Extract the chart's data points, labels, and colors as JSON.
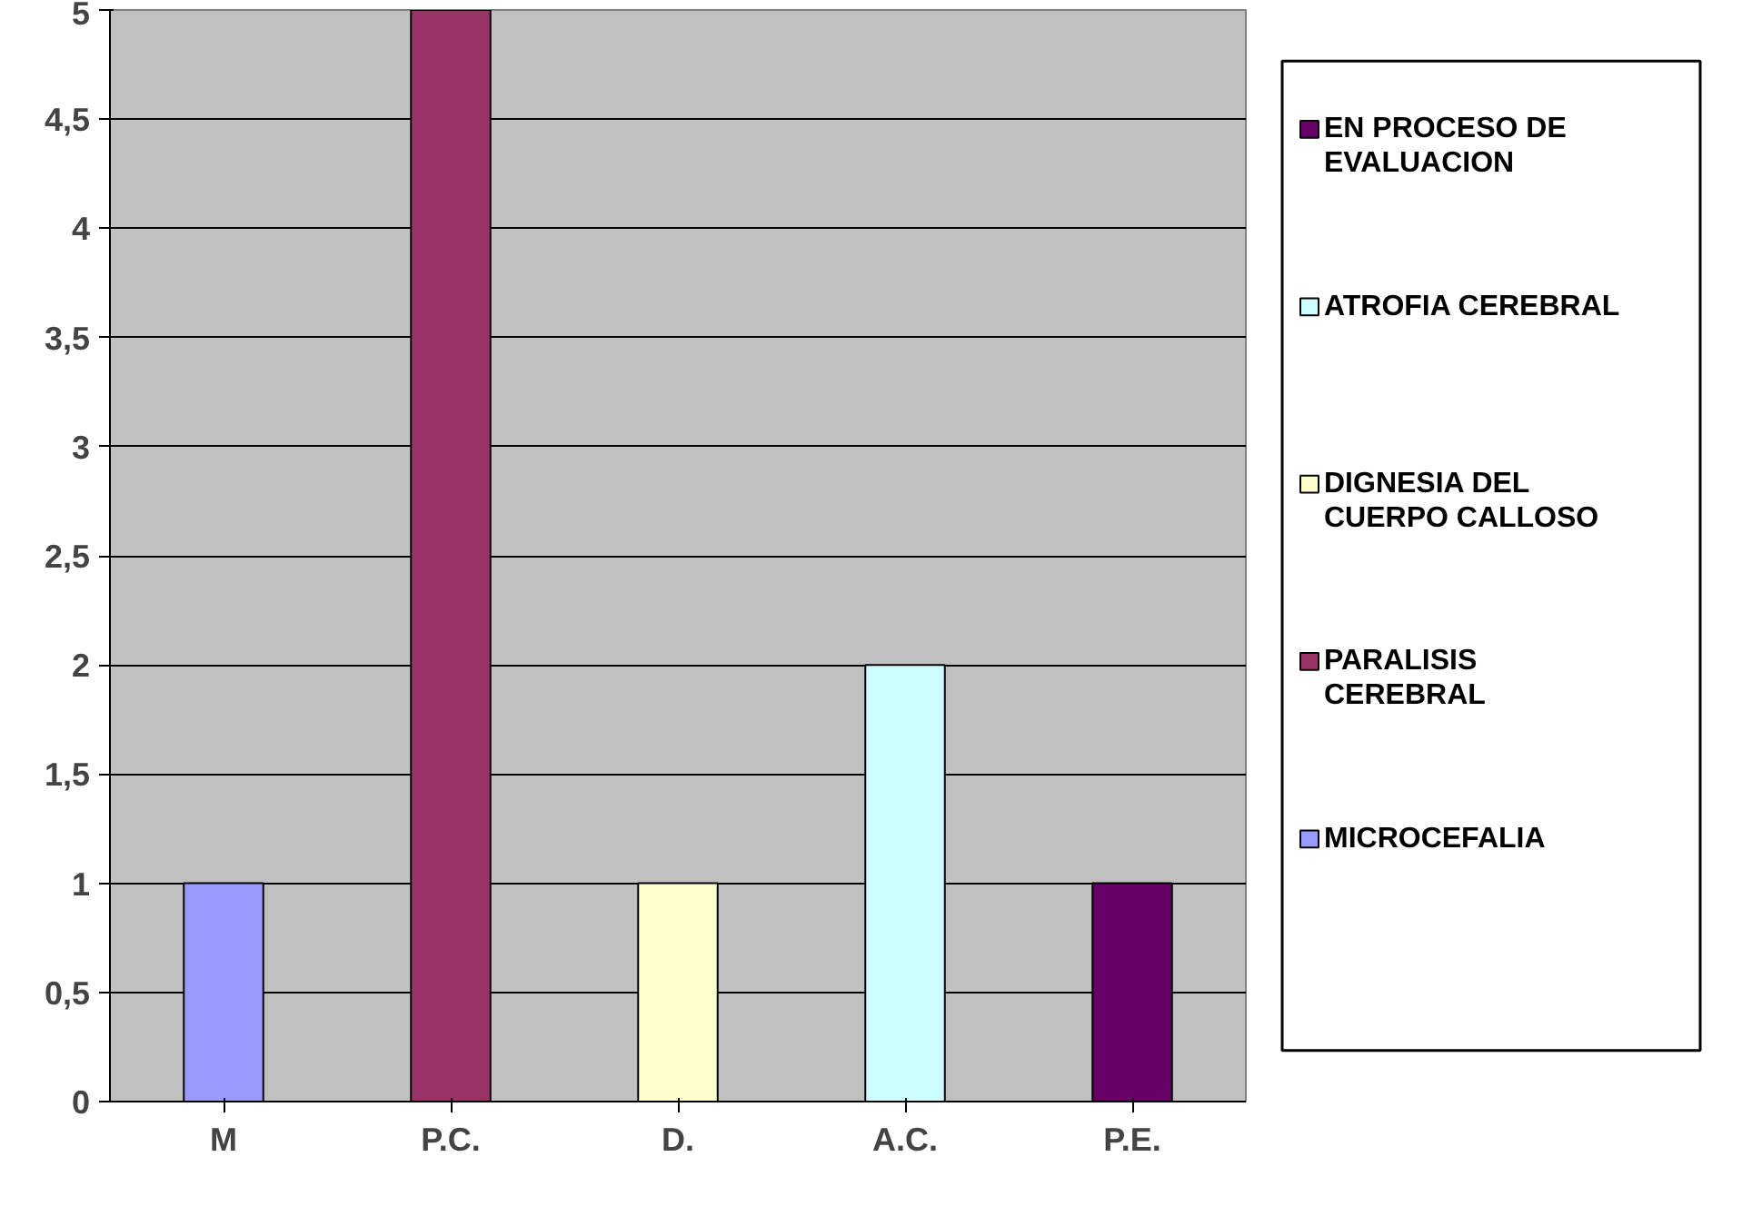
{
  "chart_data": {
    "type": "bar",
    "categories": [
      "M",
      "P.C.",
      "D.",
      "A.C.",
      "P.E."
    ],
    "series": [
      {
        "name": "MICROCEFALIA",
        "color": "#9999ff",
        "values": [
          1,
          null,
          null,
          null,
          null
        ]
      },
      {
        "name": "PARALISIS CEREBRAL",
        "color": "#993366",
        "values": [
          null,
          5,
          null,
          null,
          null
        ]
      },
      {
        "name": "DIGNESIA DEL CUERPO CALLOSO",
        "color": "#ffffcc",
        "values": [
          null,
          null,
          1,
          null,
          null
        ]
      },
      {
        "name": "ATROFIA CEREBRAL",
        "color": "#ccffff",
        "values": [
          null,
          null,
          null,
          2,
          null
        ]
      },
      {
        "name": "EN PROCESO DE EVALUACION",
        "color": "#660066",
        "values": [
          null,
          null,
          null,
          null,
          1
        ]
      }
    ],
    "ylim": [
      0,
      5
    ],
    "yticks": [
      0,
      {
        "value": 0.5,
        "label": "0,5"
      },
      1,
      {
        "value": 1.5,
        "label": "1,5"
      },
      2,
      {
        "value": 2.5,
        "label": "2,5"
      },
      3,
      {
        "value": 3.5,
        "label": "3,5"
      },
      4,
      {
        "value": 4.5,
        "label": "4,5"
      },
      5
    ],
    "grid": "y",
    "legend": "right"
  }
}
